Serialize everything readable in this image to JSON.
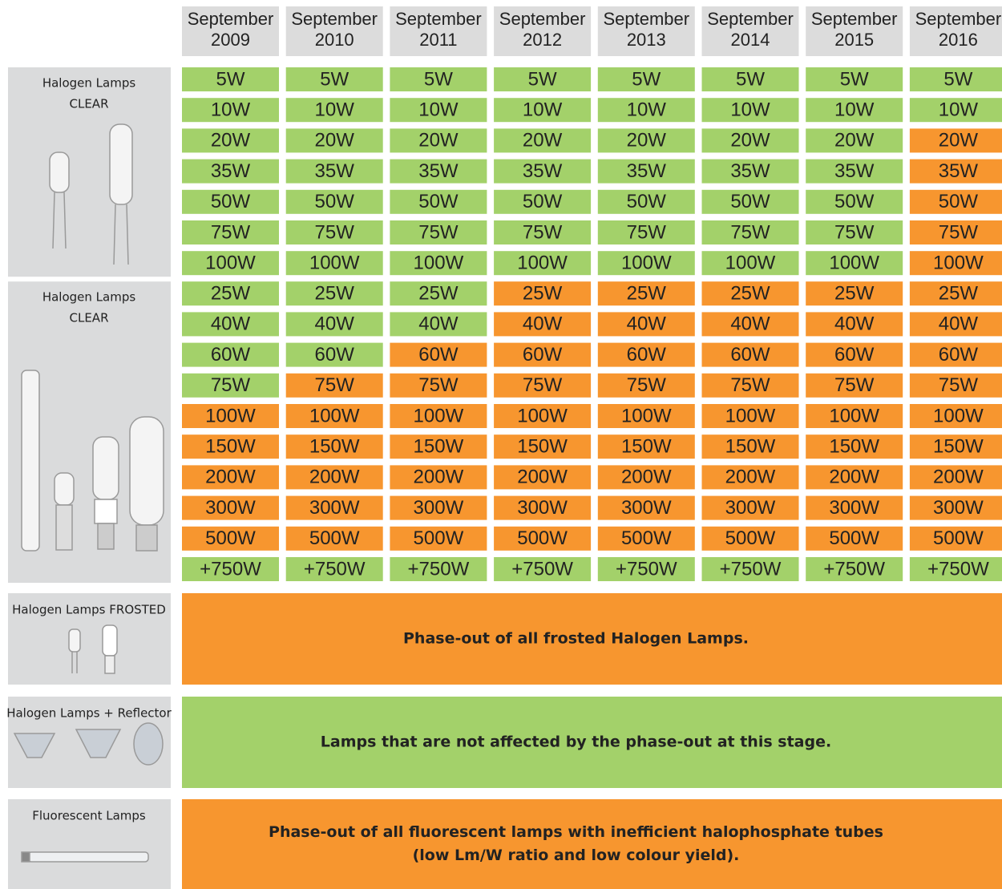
{
  "header": {
    "columns": [
      {
        "month": "September",
        "year": "2009"
      },
      {
        "month": "September",
        "year": "2010"
      },
      {
        "month": "September",
        "year": "2011"
      },
      {
        "month": "September",
        "year": "2012"
      },
      {
        "month": "September",
        "year": "2013"
      },
      {
        "month": "September",
        "year": "2014"
      },
      {
        "month": "September",
        "year": "2015"
      },
      {
        "month": "September",
        "year": "2016"
      }
    ]
  },
  "groups": [
    {
      "label": [
        "Halogen Lamps",
        "CLEAR"
      ],
      "rows": [
        {
          "cells": [
            "5W",
            "5W",
            "5W",
            "5W",
            "5W",
            "5W",
            "5W",
            "5W"
          ],
          "colors": [
            "#a3d16a",
            "#a3d16a",
            "#a3d16a",
            "#a3d16a",
            "#a3d16a",
            "#a3d16a",
            "#a3d16a",
            "#a3d16a"
          ]
        },
        {
          "cells": [
            "10W",
            "10W",
            "10W",
            "10W",
            "10W",
            "10W",
            "10W",
            "10W"
          ],
          "colors": [
            "#a3d16a",
            "#a3d16a",
            "#a3d16a",
            "#a3d16a",
            "#a3d16a",
            "#a3d16a",
            "#a3d16a",
            "#a3d16a"
          ]
        },
        {
          "cells": [
            "20W",
            "20W",
            "20W",
            "20W",
            "20W",
            "20W",
            "20W",
            "20W"
          ],
          "colors": [
            "#a3d16a",
            "#a3d16a",
            "#a3d16a",
            "#a3d16a",
            "#a3d16a",
            "#a3d16a",
            "#a3d16a",
            "#f7962f"
          ]
        },
        {
          "cells": [
            "35W",
            "35W",
            "35W",
            "35W",
            "35W",
            "35W",
            "35W",
            "35W"
          ],
          "colors": [
            "#a3d16a",
            "#a3d16a",
            "#a3d16a",
            "#a3d16a",
            "#a3d16a",
            "#a3d16a",
            "#a3d16a",
            "#f7962f"
          ]
        },
        {
          "cells": [
            "50W",
            "50W",
            "50W",
            "50W",
            "50W",
            "50W",
            "50W",
            "50W"
          ],
          "colors": [
            "#a3d16a",
            "#a3d16a",
            "#a3d16a",
            "#a3d16a",
            "#a3d16a",
            "#a3d16a",
            "#a3d16a",
            "#f7962f"
          ]
        },
        {
          "cells": [
            "75W",
            "75W",
            "75W",
            "75W",
            "75W",
            "75W",
            "75W",
            "75W"
          ],
          "colors": [
            "#a3d16a",
            "#a3d16a",
            "#a3d16a",
            "#a3d16a",
            "#a3d16a",
            "#a3d16a",
            "#a3d16a",
            "#f7962f"
          ]
        },
        {
          "cells": [
            "100W",
            "100W",
            "100W",
            "100W",
            "100W",
            "100W",
            "100W",
            "100W"
          ],
          "colors": [
            "#a3d16a",
            "#a3d16a",
            "#a3d16a",
            "#a3d16a",
            "#a3d16a",
            "#a3d16a",
            "#a3d16a",
            "#f7962f"
          ]
        }
      ]
    },
    {
      "label": [
        "Halogen Lamps",
        "CLEAR"
      ],
      "rows": [
        {
          "cells": [
            "25W",
            "25W",
            "25W",
            "25W",
            "25W",
            "25W",
            "25W",
            "25W"
          ],
          "colors": [
            "#a3d16a",
            "#a3d16a",
            "#a3d16a",
            "#f7962f",
            "#f7962f",
            "#f7962f",
            "#f7962f",
            "#f7962f"
          ]
        },
        {
          "cells": [
            "40W",
            "40W",
            "40W",
            "40W",
            "40W",
            "40W",
            "40W",
            "40W"
          ],
          "colors": [
            "#a3d16a",
            "#a3d16a",
            "#a3d16a",
            "#f7962f",
            "#f7962f",
            "#f7962f",
            "#f7962f",
            "#f7962f"
          ]
        },
        {
          "cells": [
            "60W",
            "60W",
            "60W",
            "60W",
            "60W",
            "60W",
            "60W",
            "60W"
          ],
          "colors": [
            "#a3d16a",
            "#a3d16a",
            "#f7962f",
            "#f7962f",
            "#f7962f",
            "#f7962f",
            "#f7962f",
            "#f7962f"
          ]
        },
        {
          "cells": [
            "75W",
            "75W",
            "75W",
            "75W",
            "75W",
            "75W",
            "75W",
            "75W"
          ],
          "colors": [
            "#a3d16a",
            "#f7962f",
            "#f7962f",
            "#f7962f",
            "#f7962f",
            "#f7962f",
            "#f7962f",
            "#f7962f"
          ]
        },
        {
          "cells": [
            "100W",
            "100W",
            "100W",
            "100W",
            "100W",
            "100W",
            "100W",
            "100W"
          ],
          "colors": [
            "#f7962f",
            "#f7962f",
            "#f7962f",
            "#f7962f",
            "#f7962f",
            "#f7962f",
            "#f7962f",
            "#f7962f"
          ]
        },
        {
          "cells": [
            "150W",
            "150W",
            "150W",
            "150W",
            "150W",
            "150W",
            "150W",
            "150W"
          ],
          "colors": [
            "#f7962f",
            "#f7962f",
            "#f7962f",
            "#f7962f",
            "#f7962f",
            "#f7962f",
            "#f7962f",
            "#f7962f"
          ]
        },
        {
          "cells": [
            "200W",
            "200W",
            "200W",
            "200W",
            "200W",
            "200W",
            "200W",
            "200W"
          ],
          "colors": [
            "#f7962f",
            "#f7962f",
            "#f7962f",
            "#f7962f",
            "#f7962f",
            "#f7962f",
            "#f7962f",
            "#f7962f"
          ]
        },
        {
          "cells": [
            "300W",
            "300W",
            "300W",
            "300W",
            "300W",
            "300W",
            "300W",
            "300W"
          ],
          "colors": [
            "#f7962f",
            "#f7962f",
            "#f7962f",
            "#f7962f",
            "#f7962f",
            "#f7962f",
            "#f7962f",
            "#f7962f"
          ]
        },
        {
          "cells": [
            "500W",
            "500W",
            "500W",
            "500W",
            "500W",
            "500W",
            "500W",
            "500W"
          ],
          "colors": [
            "#f7962f",
            "#f7962f",
            "#f7962f",
            "#f7962f",
            "#f7962f",
            "#f7962f",
            "#f7962f",
            "#f7962f"
          ]
        },
        {
          "cells": [
            "+750W",
            "+750W",
            "+750W",
            "+750W",
            "+750W",
            "+750W",
            "+750W",
            "+750W"
          ],
          "colors": [
            "#a3d16a",
            "#a3d16a",
            "#a3d16a",
            "#a3d16a",
            "#a3d16a",
            "#a3d16a",
            "#a3d16a",
            "#a3d16a"
          ]
        }
      ]
    }
  ],
  "banners": [
    {
      "label": "Halogen Lamps FROSTED",
      "text": [
        "Phase-out of all frosted Halogen Lamps."
      ],
      "color": "#f7962f"
    },
    {
      "label": "Halogen Lamps + Reflector",
      "text": [
        "Lamps that are not affected by the phase-out at this stage."
      ],
      "color": "#a3d16a"
    },
    {
      "label": "Fluorescent  Lamps",
      "text": [
        "Phase-out of all fluorescent lamps with inefficient halophosphate tubes",
        "(low Lm/W ratio and low colour yield)."
      ],
      "color": "#f7962f"
    }
  ]
}
